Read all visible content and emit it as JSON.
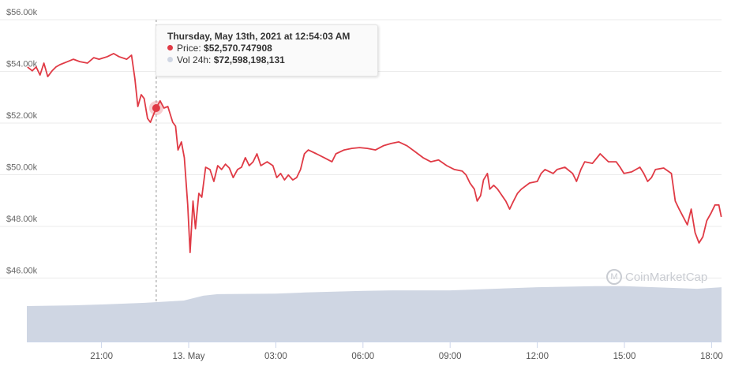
{
  "chart_data": {
    "type": "line",
    "title": "",
    "xlabel": "",
    "ylabel": "",
    "y_ticks": [
      "$46.00k",
      "$48.00k",
      "$50.00k",
      "$52.00k",
      "$54.00k",
      "$56.00k"
    ],
    "y_tick_values": [
      46000,
      48000,
      50000,
      52000,
      54000,
      56000
    ],
    "ylim": [
      45000,
      56000
    ],
    "x_ticks": [
      "21:00",
      "13. May",
      "03:00",
      "06:00",
      "09:00",
      "12:00",
      "15:00",
      "18:00"
    ],
    "grid": true,
    "colors": {
      "price": "#e03a45",
      "volume": "#cfd6e3",
      "grid": "#ebebeb"
    },
    "series": [
      {
        "key": "price",
        "points": [
          [
            "12 May 18:27",
            54170
          ],
          [
            "12 May 18:37",
            54020
          ],
          [
            "12 May 18:45",
            54170
          ],
          [
            "12 May 18:53",
            53860
          ],
          [
            "12 May 19:01",
            54320
          ],
          [
            "12 May 19:09",
            53800
          ],
          [
            "12 May 19:18",
            54020
          ],
          [
            "12 May 19:26",
            54170
          ],
          [
            "12 May 19:34",
            54260
          ],
          [
            "12 May 19:50",
            54380
          ],
          [
            "12 May 20:02",
            54470
          ],
          [
            "12 May 20:15",
            54380
          ],
          [
            "12 May 20:31",
            54320
          ],
          [
            "12 May 20:44",
            54530
          ],
          [
            "12 May 20:55",
            54470
          ],
          [
            "12 May 21:12",
            54570
          ],
          [
            "12 May 21:25",
            54690
          ],
          [
            "12 May 21:36",
            54570
          ],
          [
            "12 May 21:52",
            54470
          ],
          [
            "12 May 22:02",
            54630
          ],
          [
            "12 May 22:09",
            53710
          ],
          [
            "12 May 22:15",
            52640
          ],
          [
            "12 May 22:22",
            53100
          ],
          [
            "12 May 22:28",
            52950
          ],
          [
            "12 May 22:35",
            52180
          ],
          [
            "12 May 22:41",
            52030
          ],
          [
            "12 May 22:53",
            52580
          ],
          [
            "12 May 23:01",
            52860
          ],
          [
            "12 May 23:09",
            52580
          ],
          [
            "12 May 23:17",
            52640
          ],
          [
            "12 May 23:27",
            52030
          ],
          [
            "12 May 23:33",
            51880
          ],
          [
            "12 May 23:38",
            50960
          ],
          [
            "12 May 23:45",
            51270
          ],
          [
            "12 May 23:51",
            50660
          ],
          [
            "12 May 23:58",
            48830
          ],
          [
            "13 May 00:03",
            46990
          ],
          [
            "13 May 00:09",
            48980
          ],
          [
            "13 May 00:14",
            47910
          ],
          [
            "13 May 00:21",
            49280
          ],
          [
            "13 May 00:27",
            49130
          ],
          [
            "13 May 00:35",
            50290
          ],
          [
            "13 May 00:44",
            50200
          ],
          [
            "13 May 00:52",
            49740
          ],
          [
            "13 May 01:00",
            50350
          ],
          [
            "13 May 01:08",
            50200
          ],
          [
            "13 May 01:16",
            50410
          ],
          [
            "13 May 01:24",
            50260
          ],
          [
            "13 May 01:32",
            49890
          ],
          [
            "13 May 01:41",
            50200
          ],
          [
            "13 May 01:49",
            50290
          ],
          [
            "13 May 01:57",
            50660
          ],
          [
            "13 May 02:05",
            50350
          ],
          [
            "13 May 02:13",
            50500
          ],
          [
            "13 May 02:21",
            50810
          ],
          [
            "13 May 02:29",
            50350
          ],
          [
            "13 May 02:42",
            50500
          ],
          [
            "13 May 02:54",
            50350
          ],
          [
            "13 May 03:02",
            49890
          ],
          [
            "13 May 03:10",
            50050
          ],
          [
            "13 May 03:18",
            49800
          ],
          [
            "13 May 03:26",
            49990
          ],
          [
            "13 May 03:35",
            49800
          ],
          [
            "13 May 03:43",
            49890
          ],
          [
            "13 May 03:51",
            50200
          ],
          [
            "13 May 03:59",
            50810
          ],
          [
            "13 May 04:07",
            50960
          ],
          [
            "13 May 04:24",
            50810
          ],
          [
            "13 May 04:40",
            50660
          ],
          [
            "13 May 04:56",
            50500
          ],
          [
            "13 May 05:04",
            50810
          ],
          [
            "13 May 05:21",
            50960
          ],
          [
            "13 May 05:37",
            51020
          ],
          [
            "13 May 05:53",
            51050
          ],
          [
            "13 May 06:09",
            51020
          ],
          [
            "13 May 06:26",
            50960
          ],
          [
            "13 May 06:42",
            51120
          ],
          [
            "13 May 06:58",
            51210
          ],
          [
            "13 May 07:14",
            51270
          ],
          [
            "13 May 07:31",
            51120
          ],
          [
            "13 May 07:47",
            50900
          ],
          [
            "13 May 08:04",
            50660
          ],
          [
            "13 May 08:20",
            50500
          ],
          [
            "13 May 08:36",
            50570
          ],
          [
            "13 May 08:53",
            50350
          ],
          [
            "13 May 09:09",
            50200
          ],
          [
            "13 May 09:25",
            50140
          ],
          [
            "13 May 09:33",
            49990
          ],
          [
            "13 May 09:41",
            49680
          ],
          [
            "13 May 09:50",
            49440
          ],
          [
            "13 May 09:56",
            48980
          ],
          [
            "13 May 10:03",
            49190
          ],
          [
            "13 May 10:09",
            49800
          ],
          [
            "13 May 10:17",
            50050
          ],
          [
            "13 May 10:22",
            49440
          ],
          [
            "13 May 10:30",
            49590
          ],
          [
            "13 May 10:38",
            49440
          ],
          [
            "13 May 10:55",
            48980
          ],
          [
            "13 May 11:03",
            48670
          ],
          [
            "13 May 11:11",
            48980
          ],
          [
            "13 May 11:19",
            49280
          ],
          [
            "13 May 11:27",
            49440
          ],
          [
            "13 May 11:44",
            49680
          ],
          [
            "13 May 12:00",
            49740
          ],
          [
            "13 May 12:08",
            50050
          ],
          [
            "13 May 12:16",
            50200
          ],
          [
            "13 May 12:33",
            50050
          ],
          [
            "13 May 12:41",
            50200
          ],
          [
            "13 May 12:57",
            50290
          ],
          [
            "13 May 13:13",
            50050
          ],
          [
            "13 May 13:21",
            49740
          ],
          [
            "13 May 13:30",
            50200
          ],
          [
            "13 May 13:38",
            50500
          ],
          [
            "13 May 13:54",
            50440
          ],
          [
            "13 May 14:10",
            50810
          ],
          [
            "13 May 14:27",
            50500
          ],
          [
            "13 May 14:43",
            50500
          ],
          [
            "13 May 14:51",
            50290
          ],
          [
            "13 May 14:59",
            50050
          ],
          [
            "13 May 15:15",
            50110
          ],
          [
            "13 May 15:32",
            50290
          ],
          [
            "13 May 15:40",
            50050
          ],
          [
            "13 May 15:48",
            49740
          ],
          [
            "13 May 15:56",
            49890
          ],
          [
            "13 May 16:04",
            50200
          ],
          [
            "13 May 16:21",
            50260
          ],
          [
            "13 May 16:37",
            50050
          ],
          [
            "13 May 16:45",
            48980
          ],
          [
            "13 May 16:53",
            48670
          ],
          [
            "13 May 17:10",
            48060
          ],
          [
            "13 May 17:18",
            48670
          ],
          [
            "13 May 17:26",
            47760
          ],
          [
            "13 May 17:34",
            47360
          ],
          [
            "13 May 17:42",
            47600
          ],
          [
            "13 May 17:50",
            48220
          ],
          [
            "13 May 17:59",
            48520
          ],
          [
            "13 May 18:07",
            48830
          ],
          [
            "13 May 18:15",
            48830
          ],
          [
            "13 May 18:20",
            48370
          ]
        ]
      },
      {
        "key": "volume",
        "points": [
          [
            "12 May 18:27",
            66600000000
          ],
          [
            "12 May 20:00",
            68000000000
          ],
          [
            "12 May 21:00",
            69500000000
          ],
          [
            "12 May 22:30",
            72600000000
          ],
          [
            "12 May 23:50",
            77000000000
          ],
          [
            "13 May 00:30",
            86000000000
          ],
          [
            "13 May 01:00",
            89000000000
          ],
          [
            "13 May 03:00",
            90000000000
          ],
          [
            "13 May 04:00",
            92000000000
          ],
          [
            "13 May 06:00",
            95000000000
          ],
          [
            "13 May 07:00",
            96000000000
          ],
          [
            "13 May 09:00",
            96000000000
          ],
          [
            "13 May 10:30",
            99000000000
          ],
          [
            "13 May 12:00",
            102000000000
          ],
          [
            "13 May 14:00",
            104000000000
          ],
          [
            "13 May 15:00",
            104000000000
          ],
          [
            "13 May 16:30",
            101000000000
          ],
          [
            "13 May 17:30",
            99000000000
          ],
          [
            "13 May 18:20",
            102000000000
          ]
        ]
      }
    ],
    "hover_time": "12 May 22:53"
  },
  "tooltip": {
    "title": "Thursday, May 13th, 2021 at 12:54:03 AM",
    "price_label": "Price:",
    "price_value": "$52,570.747908",
    "volume_label": "Vol 24h:",
    "volume_value": "$72,598,198,131"
  },
  "watermark": "CoinMarketCap"
}
